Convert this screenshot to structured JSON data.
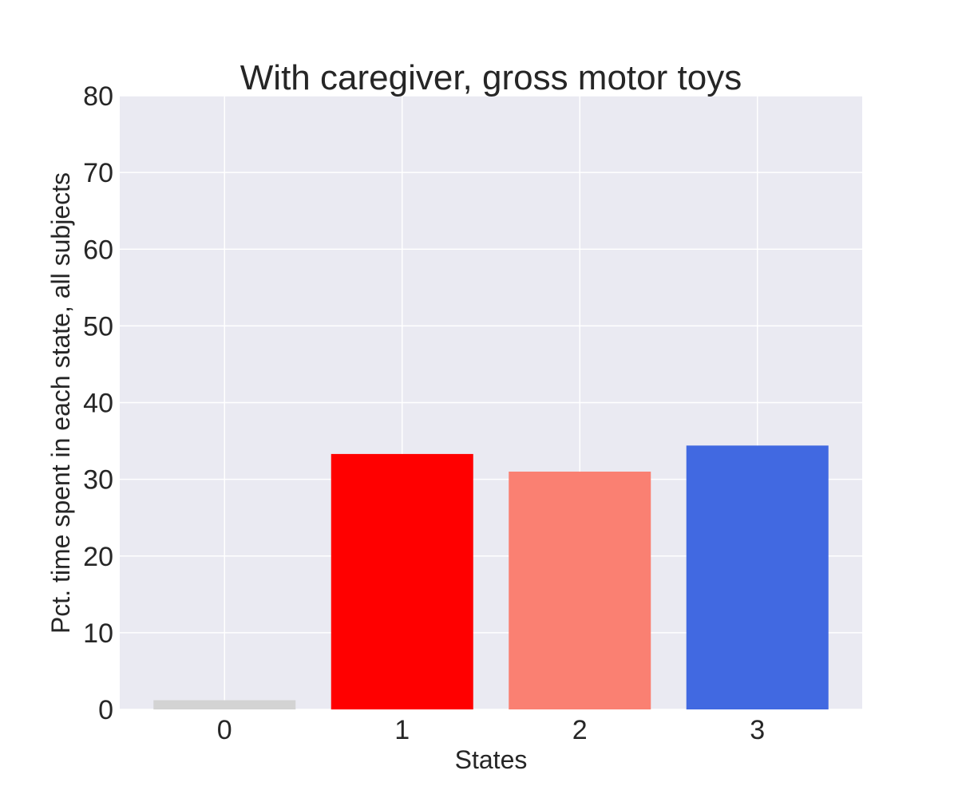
{
  "chart_data": {
    "type": "bar",
    "title": "With caregiver, gross motor toys",
    "xlabel": "States",
    "ylabel": "Pct. time spent in each state, all subjects",
    "categories": [
      "0",
      "1",
      "2",
      "3"
    ],
    "values": [
      1.2,
      33.3,
      31.0,
      34.4
    ],
    "colors": [
      "#d3d3d3",
      "#ff0000",
      "#fa8072",
      "#4169e1"
    ],
    "ylim": [
      0,
      80
    ],
    "yticks": [
      "0",
      "10",
      "20",
      "30",
      "40",
      "50",
      "60",
      "70",
      "80"
    ],
    "grid": true,
    "legend": "none",
    "background_color": "#eaeaf2",
    "grid_color": "#ffffff"
  }
}
